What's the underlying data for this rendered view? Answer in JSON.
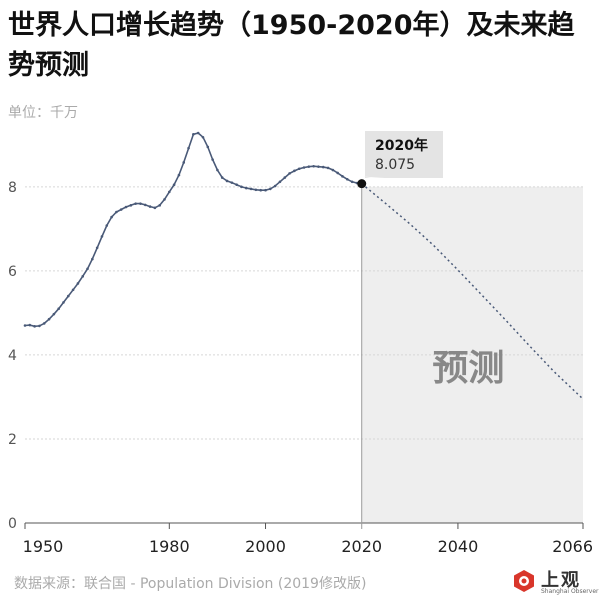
{
  "header": {
    "title": "世界人口增长趋势（1950-2020年）及未来趋势预测",
    "unit": "单位：千万"
  },
  "footer": {
    "source": "数据来源：联合国 - Population Division (2019修改版)",
    "logo_text": "上观",
    "logo_sub": "Shanghai Observer",
    "logo_icon": "red-hexagon-logo-icon"
  },
  "colors": {
    "line": "#4a5a78",
    "forecast_bg": "#eeeeee",
    "grid": "#d6d6d6",
    "logo": "#d9362b"
  },
  "chart_data": {
    "type": "line",
    "title": "世界人口增长趋势（1950-2020年）及未来趋势预测",
    "ylabel": "单位：千万",
    "xlim": [
      1950,
      2066
    ],
    "ylim": [
      0,
      9.4
    ],
    "x_ticks": [
      1950,
      1980,
      2000,
      2020,
      2040,
      2066
    ],
    "y_ticks": [
      0,
      2,
      4,
      6,
      8
    ],
    "grid": true,
    "forecast_label": "预测",
    "forecast_start": 2020,
    "callout": {
      "year_label": "2020年",
      "value_label": "8.075",
      "x": 2020,
      "y": 8.075
    },
    "series": [
      {
        "x": [
          1950,
          1951,
          1952,
          1953,
          1954,
          1955,
          1956,
          1957,
          1958,
          1959,
          1960,
          1961,
          1962,
          1963,
          1964,
          1965,
          1966,
          1967,
          1968,
          1969,
          1970,
          1971,
          1972,
          1973,
          1974,
          1975,
          1976,
          1977,
          1978,
          1979,
          1980,
          1981,
          1982,
          1983,
          1984,
          1985,
          1986,
          1987,
          1988,
          1989,
          1990,
          1991,
          1992,
          1993,
          1994,
          1995,
          1996,
          1997,
          1998,
          1999,
          2000,
          2001,
          2002,
          2003,
          2004,
          2005,
          2006,
          2007,
          2008,
          2009,
          2010,
          2011,
          2012,
          2013,
          2014,
          2015,
          2016,
          2017,
          2018,
          2019,
          2020
        ],
        "values": [
          4.7,
          4.71,
          4.68,
          4.69,
          4.75,
          4.85,
          4.97,
          5.1,
          5.25,
          5.4,
          5.55,
          5.7,
          5.87,
          6.05,
          6.28,
          6.55,
          6.82,
          7.08,
          7.28,
          7.4,
          7.46,
          7.52,
          7.56,
          7.6,
          7.6,
          7.57,
          7.53,
          7.5,
          7.56,
          7.7,
          7.88,
          8.05,
          8.28,
          8.58,
          8.92,
          9.25,
          9.28,
          9.18,
          8.95,
          8.65,
          8.4,
          8.22,
          8.14,
          8.1,
          8.05,
          8.0,
          7.97,
          7.95,
          7.93,
          7.92,
          7.92,
          7.95,
          8.02,
          8.12,
          8.22,
          8.32,
          8.38,
          8.43,
          8.46,
          8.48,
          8.49,
          8.48,
          8.47,
          8.45,
          8.4,
          8.33,
          8.25,
          8.18,
          8.12,
          8.09,
          8.075
        ],
        "style": "solid"
      },
      {
        "x": [
          2020,
          2025,
          2030,
          2035,
          2040,
          2045,
          2050,
          2055,
          2060,
          2066
        ],
        "values": [
          8.075,
          7.6,
          7.12,
          6.6,
          6.02,
          5.42,
          4.82,
          4.2,
          3.6,
          2.95
        ],
        "style": "dotted"
      }
    ]
  }
}
